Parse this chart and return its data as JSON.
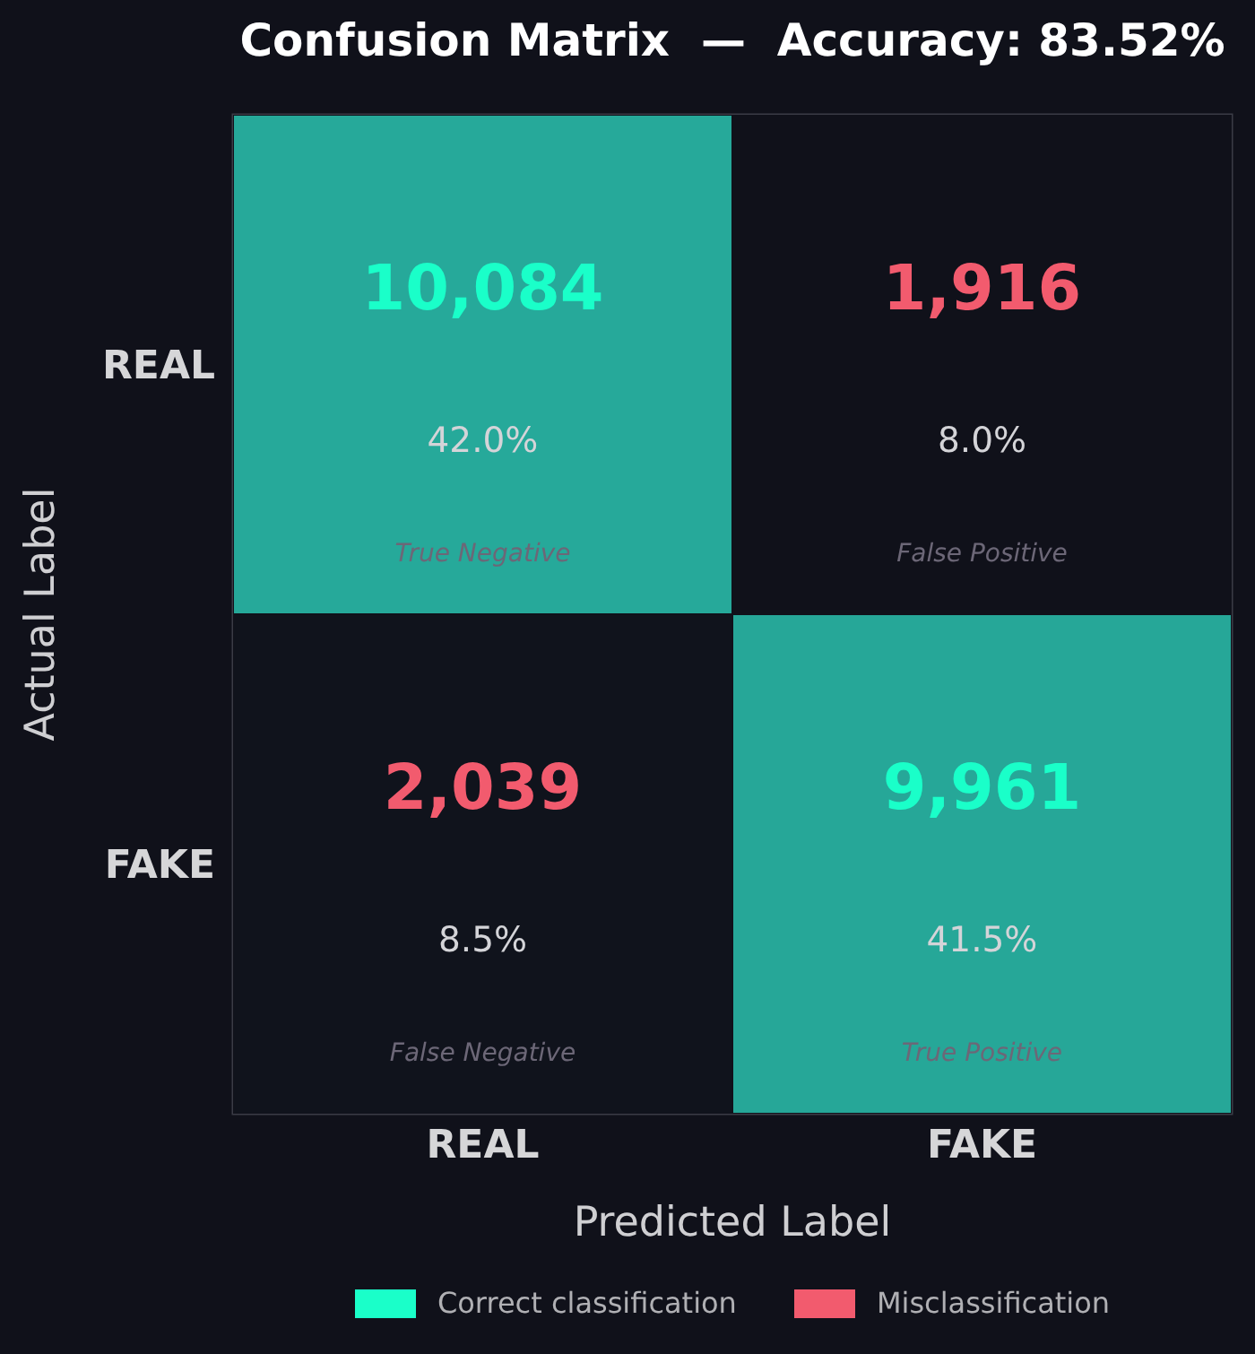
{
  "chart_data": {
    "type": "heatmap",
    "title": "Confusion Matrix  —  Accuracy: 83.52%",
    "xlabel": "Predicted Label",
    "ylabel": "Actual Label",
    "categories": [
      "REAL",
      "FAKE"
    ],
    "y_categories": [
      "REAL",
      "FAKE"
    ],
    "cells": [
      [
        10084,
        1916
      ],
      [
        2039,
        9961
      ]
    ],
    "cell_labels": [
      [
        "10,084",
        "1,916"
      ],
      [
        "2,039",
        "9,961"
      ]
    ],
    "series": [
      {
        "name": "Correct classification",
        "color": "#1affc9",
        "values": [
          null,
          null
        ]
      },
      {
        "name": "Misclassification",
        "color": "#f25b6e",
        "values": [
          null,
          null
        ]
      }
    ],
    "legend": "bottom",
    "annotations": [
      "42.0%",
      "True Negative",
      "8.0%",
      "False Positive",
      "8.5%",
      "False Negative",
      "41.5%",
      "True Positive"
    ]
  }
}
